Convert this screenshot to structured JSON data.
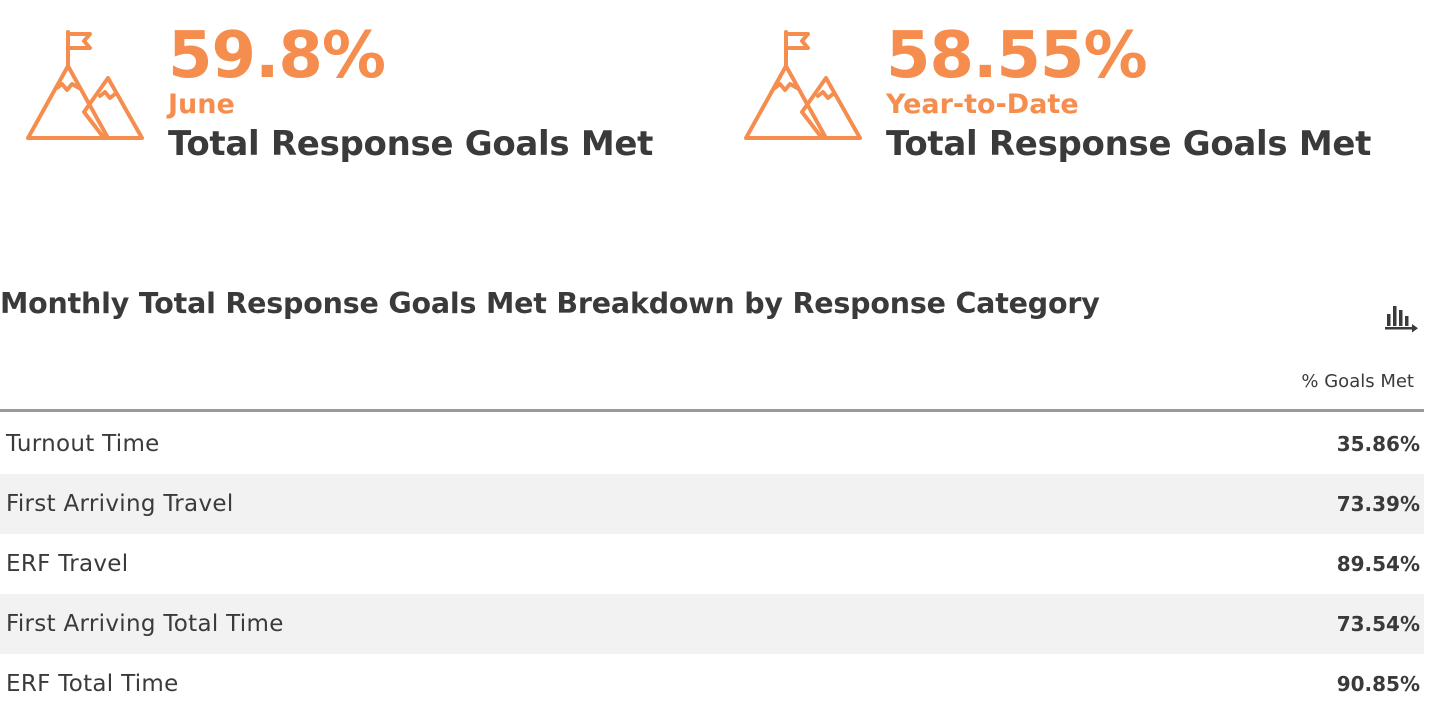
{
  "kpis": [
    {
      "value": "59.8%",
      "period": "June",
      "caption": "Total Response Goals Met",
      "icon": "mountain-flag-icon"
    },
    {
      "value": "58.55%",
      "period": "Year-to-Date",
      "caption": "Total Response Goals Met",
      "icon": "mountain-flag-icon"
    }
  ],
  "breakdown": {
    "title": "Monthly Total Response Goals Met Breakdown by Response Category",
    "chart_toggle_icon": "bar-chart-icon",
    "column_header": "% Goals Met",
    "rows": [
      {
        "label": "Turnout Time",
        "value": "35.86%"
      },
      {
        "label": "First Arriving Travel",
        "value": "73.39%"
      },
      {
        "label": "ERF Travel",
        "value": "89.54%"
      },
      {
        "label": "First Arriving Total Time",
        "value": "73.54%"
      },
      {
        "label": "ERF Total Time",
        "value": "90.85%"
      }
    ]
  },
  "colors": {
    "accent": "#f58d4e",
    "text": "#3a3a3a",
    "row_alt": "#f2f2f2",
    "rule": "#9a9a9a"
  }
}
